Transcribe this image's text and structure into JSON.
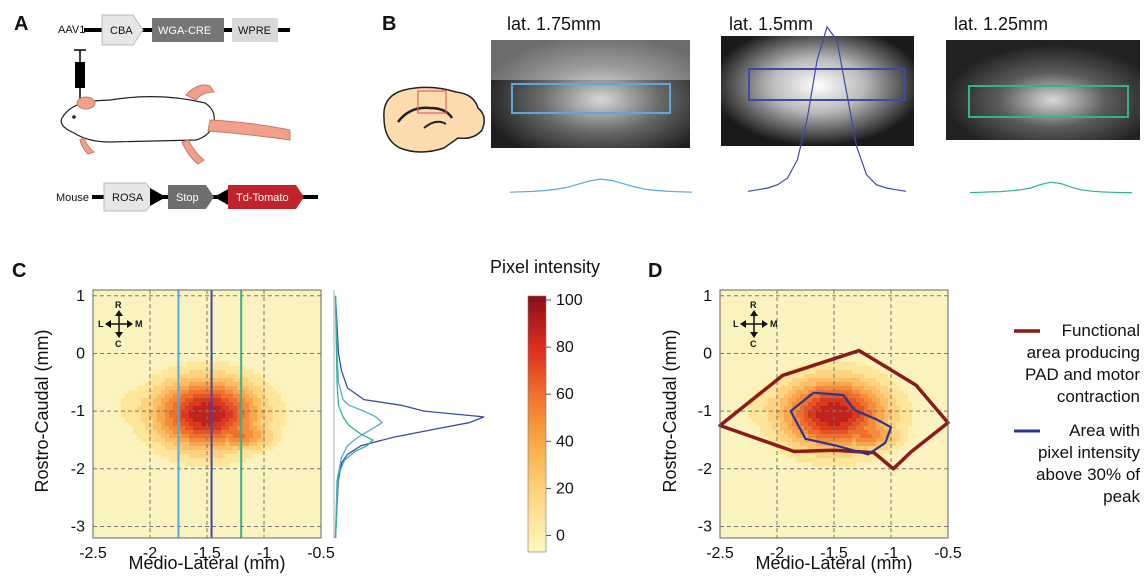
{
  "panels": {
    "a": {
      "letter": "A",
      "construct_virus": {
        "name": "AAV1",
        "parts": [
          "CBA",
          "WGA-CRE",
          "WPRE"
        ]
      },
      "construct_mouse": {
        "name": "Mouse",
        "parts": [
          "ROSA",
          "Stop",
          "Td-Tomato"
        ]
      }
    },
    "b": {
      "letter": "B",
      "images": [
        {
          "title": "lat. 1.75mm",
          "roi_color": "#5aa9d8",
          "profile": [
            2,
            3,
            4,
            6,
            9,
            14,
            22,
            30,
            35,
            31,
            23,
            15,
            9,
            6,
            4,
            3,
            2
          ]
        },
        {
          "title": "lat. 1.5mm",
          "roi_color": "#3b4ba8",
          "profile": [
            1,
            2,
            3,
            5,
            9,
            20,
            45,
            80,
            100,
            92,
            60,
            28,
            11,
            5,
            3,
            2,
            1
          ]
        },
        {
          "title": "lat. 1.25mm",
          "roi_color": "#2fb392",
          "profile": [
            1,
            2,
            3,
            4,
            6,
            9,
            14,
            24,
            30,
            26,
            16,
            9,
            5,
            3,
            2,
            1,
            1
          ]
        }
      ]
    },
    "c": {
      "letter": "C",
      "xlabel": "Medio-Lateral (mm)",
      "ylabel": "Rostro-Caudal (mm)",
      "compass": {
        "r": "R",
        "c": "C",
        "l": "L",
        "m": "M"
      },
      "colorbar": {
        "title": "Pixel intensity",
        "ticks": [
          "100",
          "80",
          "60",
          "40",
          "20",
          "0"
        ]
      }
    },
    "d": {
      "letter": "D",
      "xlabel": "Medio-Lateral (mm)",
      "ylabel": "Rostro-Caudal (mm)",
      "compass": {
        "r": "R",
        "c": "C",
        "l": "L",
        "m": "M"
      },
      "legend": [
        {
          "color": "#8b1a1a",
          "lines": [
            "Functional",
            "area producing",
            "PAD and motor",
            "contraction"
          ]
        },
        {
          "color": "#2a3590",
          "lines": [
            "Area with",
            "pixel intensity",
            "above 30% of",
            "peak"
          ]
        }
      ]
    }
  },
  "chart_data": [
    {
      "type": "heatmap",
      "panel": "C",
      "xlabel": "Medio-Lateral (mm)",
      "ylabel": "Rostro-Caudal (mm)",
      "xlim": [
        -2.5,
        -0.5
      ],
      "ylim": [
        -3.2,
        1.1
      ],
      "xticks": [
        -2.5,
        -2,
        -1.5,
        -1,
        -0.5
      ],
      "yticks": [
        1,
        0,
        -1,
        -2,
        -3
      ],
      "grid": true,
      "blobs": [
        {
          "x": -1.5,
          "y": -1.05,
          "sx": 0.32,
          "sy": 0.42,
          "amp": 100
        },
        {
          "x": -1.22,
          "y": -1.4,
          "sx": 0.2,
          "sy": 0.2,
          "amp": 62
        },
        {
          "x": -1.85,
          "y": -0.95,
          "sx": 0.28,
          "sy": 0.3,
          "amp": 30
        }
      ],
      "vertical_lines": [
        {
          "x": -1.75,
          "color": "#5aa9d8"
        },
        {
          "x": -1.46,
          "color": "#3b4ba8"
        },
        {
          "x": -1.2,
          "color": "#2fb392"
        }
      ],
      "side_profiles": [
        {
          "color": "#3b4ba8",
          "points": [
            [
              1.0,
              1
            ],
            [
              0.5,
              2
            ],
            [
              0,
              3
            ],
            [
              -0.3,
              5
            ],
            [
              -0.6,
              9
            ],
            [
              -0.8,
              20
            ],
            [
              -0.9,
              45
            ],
            [
              -1.0,
              60
            ],
            [
              -1.05,
              80
            ],
            [
              -1.1,
              100
            ],
            [
              -1.2,
              90
            ],
            [
              -1.3,
              70
            ],
            [
              -1.45,
              40
            ],
            [
              -1.6,
              18
            ],
            [
              -1.75,
              9
            ],
            [
              -1.9,
              5
            ],
            [
              -2.2,
              3
            ],
            [
              -2.6,
              2
            ],
            [
              -3.2,
              1
            ]
          ]
        },
        {
          "color": "#5aa9d8",
          "points": [
            [
              1.0,
              1
            ],
            [
              0,
              2
            ],
            [
              -0.5,
              3
            ],
            [
              -0.8,
              6
            ],
            [
              -0.9,
              10
            ],
            [
              -1.0,
              20
            ],
            [
              -1.1,
              28
            ],
            [
              -1.2,
              32
            ],
            [
              -1.3,
              26
            ],
            [
              -1.45,
              16
            ],
            [
              -1.6,
              9
            ],
            [
              -1.8,
              5
            ],
            [
              -2.2,
              2
            ],
            [
              -3.2,
              1
            ]
          ]
        },
        {
          "color": "#2fb392",
          "points": [
            [
              1.0,
              1
            ],
            [
              -0.5,
              2
            ],
            [
              -0.9,
              3
            ],
            [
              -1.1,
              6
            ],
            [
              -1.25,
              10
            ],
            [
              -1.4,
              18
            ],
            [
              -1.5,
              26
            ],
            [
              -1.6,
              22
            ],
            [
              -1.7,
              14
            ],
            [
              -1.85,
              7
            ],
            [
              -2.1,
              3
            ],
            [
              -3.2,
              1
            ]
          ]
        }
      ]
    },
    {
      "type": "heatmap",
      "panel": "D",
      "xlabel": "Medio-Lateral (mm)",
      "ylabel": "Rostro-Caudal (mm)",
      "xlim": [
        -2.5,
        -0.5
      ],
      "ylim": [
        -3.2,
        1.1
      ],
      "xticks": [
        -2.5,
        -2,
        -1.5,
        -1,
        -0.5
      ],
      "yticks": [
        1,
        0,
        -1,
        -2,
        -3
      ],
      "grid": true,
      "blobs": [
        {
          "x": -1.5,
          "y": -1.05,
          "sx": 0.32,
          "sy": 0.42,
          "amp": 100
        },
        {
          "x": -1.22,
          "y": -1.4,
          "sx": 0.2,
          "sy": 0.2,
          "amp": 62
        },
        {
          "x": -1.85,
          "y": -0.95,
          "sx": 0.28,
          "sy": 0.3,
          "amp": 30
        }
      ],
      "functional_area": [
        [
          -2.5,
          -1.25
        ],
        [
          -1.95,
          -0.38
        ],
        [
          -1.28,
          0.05
        ],
        [
          -0.78,
          -0.55
        ],
        [
          -0.5,
          -1.2
        ],
        [
          -0.82,
          -1.7
        ],
        [
          -0.98,
          -2.0
        ],
        [
          -1.15,
          -1.72
        ],
        [
          -1.5,
          -1.68
        ],
        [
          -1.85,
          -1.7
        ]
      ],
      "area_above_30": [
        [
          -1.75,
          -1.48
        ],
        [
          -1.88,
          -1.0
        ],
        [
          -1.68,
          -0.68
        ],
        [
          -1.42,
          -0.72
        ],
        [
          -1.32,
          -0.98
        ],
        [
          -1.12,
          -1.15
        ],
        [
          -1.0,
          -1.28
        ],
        [
          -1.05,
          -1.55
        ],
        [
          -1.2,
          -1.75
        ],
        [
          -1.48,
          -1.6
        ]
      ]
    }
  ]
}
